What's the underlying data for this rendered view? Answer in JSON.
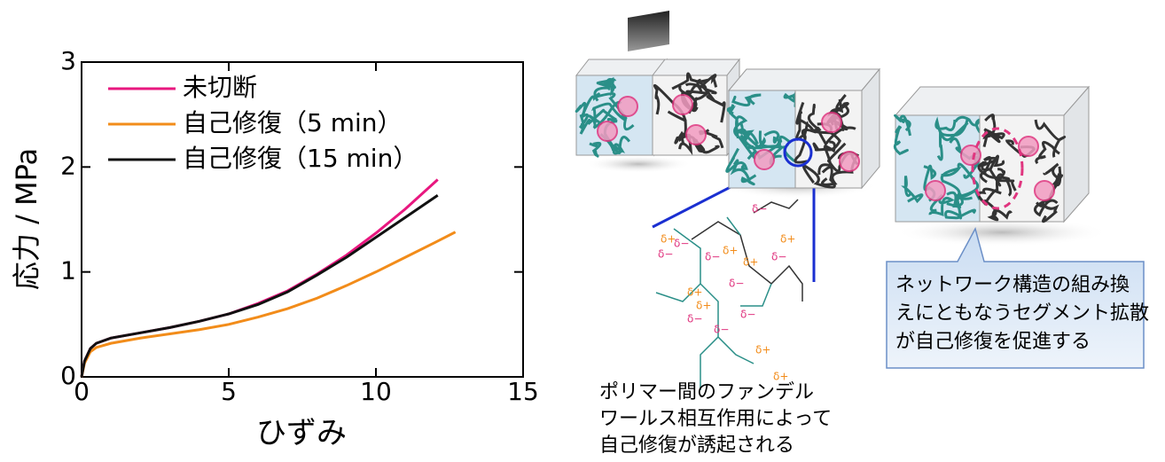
{
  "chart_data": {
    "type": "line",
    "xlabel": "ひずみ",
    "ylabel": "応力 / MPa",
    "xlim": [
      0,
      15
    ],
    "xticks": [
      0,
      5,
      10,
      15
    ],
    "ylim": [
      0,
      3
    ],
    "yticks": [
      0,
      1,
      2,
      3
    ],
    "legend": "upper-left",
    "series": [
      {
        "name": "未切断",
        "color": "#e8177f",
        "x": [
          0,
          0.1,
          0.3,
          0.5,
          1,
          2,
          3,
          4,
          5,
          6,
          7,
          8,
          9,
          10,
          11,
          12.1
        ],
        "values": [
          0,
          0.15,
          0.27,
          0.32,
          0.37,
          0.42,
          0.47,
          0.53,
          0.6,
          0.7,
          0.82,
          0.98,
          1.16,
          1.37,
          1.6,
          1.88
        ]
      },
      {
        "name": "自己修復（5 min）",
        "color": "#f28c1a",
        "x": [
          0,
          0.1,
          0.3,
          0.5,
          1,
          2,
          3,
          4,
          5,
          6,
          7,
          8,
          9,
          10,
          11,
          12,
          12.7
        ],
        "values": [
          0,
          0.13,
          0.24,
          0.28,
          0.32,
          0.37,
          0.41,
          0.45,
          0.5,
          0.57,
          0.65,
          0.75,
          0.87,
          1.0,
          1.14,
          1.28,
          1.38
        ]
      },
      {
        "name": "自己修復（15 min）",
        "color": "#111111",
        "x": [
          0,
          0.1,
          0.3,
          0.5,
          1,
          2,
          3,
          4,
          5,
          6,
          7,
          8,
          9,
          10,
          11,
          12.1
        ],
        "values": [
          0,
          0.15,
          0.27,
          0.32,
          0.37,
          0.42,
          0.47,
          0.53,
          0.6,
          0.69,
          0.81,
          0.97,
          1.14,
          1.33,
          1.52,
          1.73
        ]
      }
    ]
  },
  "diagram": {
    "charges": [
      "δ−",
      "δ+",
      "δ−",
      "δ−",
      "δ+",
      "δ+",
      "δ+",
      "δ−",
      "δ−",
      "δ−",
      "δ+",
      "δ+",
      "δ−",
      "δ−",
      "δ+",
      "δ−",
      "δ+"
    ],
    "caption": [
      "ポリマー間のファンデル",
      "ワールス相互作用によって",
      "自己修復が誘起される"
    ],
    "callout": [
      "ネットワーク構造の組み換",
      "えにともなうセグメント拡散",
      "が自己修復を促進する"
    ]
  }
}
